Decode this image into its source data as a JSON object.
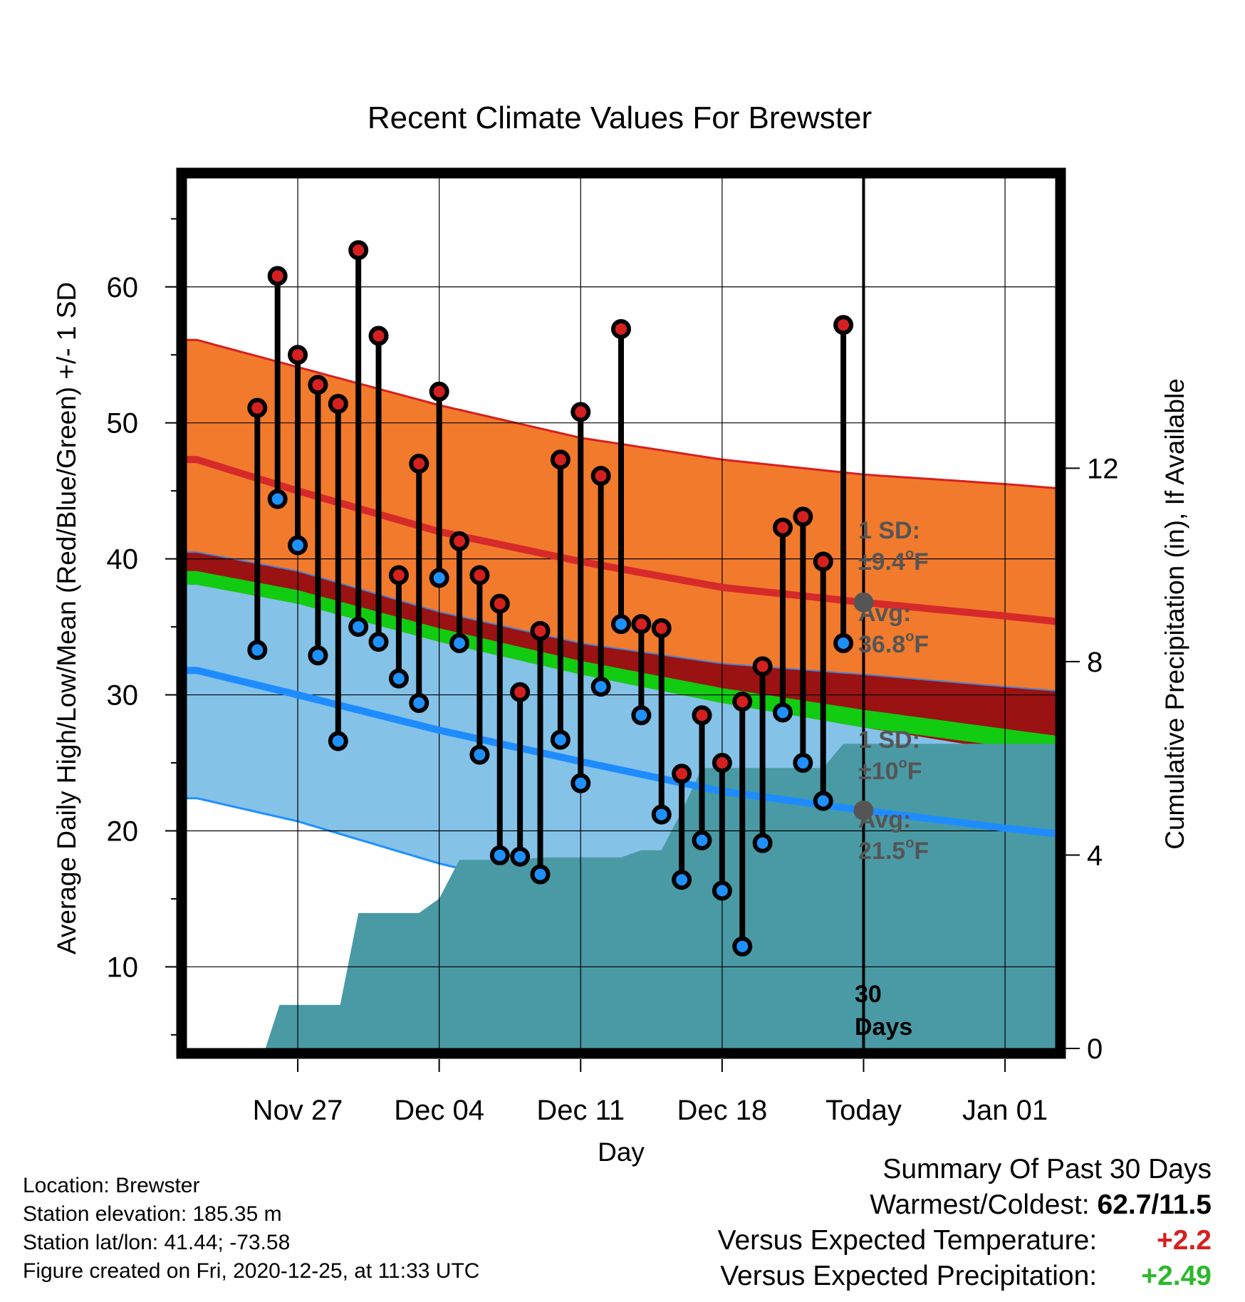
{
  "chart_data": {
    "type": "line",
    "title": "Recent Climate Values For Brewster",
    "xlabel": "Day",
    "ylabel_left": "Average Daily High/Low/Mean (Red/Blue/Green) +/- 1 SD",
    "ylabel_right": "Cumulative Precipitation (in), If Available",
    "y_left_range": [
      4,
      68
    ],
    "y_right_range": [
      0,
      18
    ],
    "x_range_days": [
      -33.5,
      9.5
    ],
    "y_left_ticks": [
      10,
      20,
      30,
      40,
      50,
      60
    ],
    "y_right_ticks": [
      0,
      4,
      8,
      12
    ],
    "x_ticks": [
      {
        "day": -28,
        "label": "Nov 27"
      },
      {
        "day": -21,
        "label": "Dec 04"
      },
      {
        "day": -14,
        "label": "Dec 11"
      },
      {
        "day": -7,
        "label": "Dec 18"
      },
      {
        "day": 0,
        "label": "Today"
      },
      {
        "day": 7,
        "label": "Jan 01"
      }
    ],
    "grid": true,
    "normals": {
      "days": [
        -33,
        -28,
        -21,
        -14,
        -7,
        0,
        7,
        9.5
      ],
      "high_avg": [
        47.3,
        45.0,
        42.0,
        39.8,
        37.9,
        36.8,
        35.8,
        35.4
      ],
      "high_upper": [
        56.1,
        54.1,
        51.3,
        48.9,
        47.3,
        46.2,
        45.5,
        45.2
      ],
      "high_lower": [
        40.5,
        39.1,
        36.1,
        33.8,
        32.3,
        31.5,
        30.6,
        30.3
      ],
      "low_avg": [
        31.8,
        30.0,
        27.4,
        25.1,
        22.9,
        21.5,
        20.2,
        19.8
      ],
      "low_upper": [
        38.1,
        36.7,
        33.9,
        31.5,
        29.4,
        27.6,
        25.9,
        25.4
      ],
      "low_lower": [
        22.4,
        20.7,
        17.6,
        15.1,
        13.0,
        11.5,
        10.1,
        9.6
      ],
      "mean_upper": [
        39.1,
        37.7,
        34.9,
        32.5,
        30.5,
        28.9,
        27.5,
        27.0
      ],
      "mean_lower": [
        38.1,
        36.7,
        33.9,
        31.5,
        29.4,
        27.6,
        26.2,
        25.9
      ]
    },
    "series": [
      {
        "name": "High",
        "color": "#d62020",
        "days": [
          -30,
          -29,
          -28,
          -27,
          -26,
          -25,
          -24,
          -23,
          -22,
          -21,
          -20,
          -19,
          -18,
          -17,
          -16,
          -15,
          -14,
          -13,
          -12,
          -11,
          -10,
          -9,
          -8,
          -7,
          -6,
          -5,
          -4,
          -3,
          -2,
          -1
        ],
        "values": [
          51.1,
          60.8,
          55.0,
          52.8,
          51.4,
          62.7,
          56.4,
          38.8,
          47.0,
          52.3,
          41.3,
          38.8,
          36.7,
          30.2,
          34.7,
          47.3,
          50.8,
          46.1,
          56.9,
          35.2,
          34.9,
          24.2,
          28.5,
          25.0,
          29.5,
          32.1,
          42.3,
          43.1,
          39.8,
          57.2
        ]
      },
      {
        "name": "Low",
        "color": "#1e90ff",
        "days": [
          -30,
          -29,
          -28,
          -27,
          -26,
          -25,
          -24,
          -23,
          -22,
          -21,
          -20,
          -19,
          -18,
          -17,
          -16,
          -15,
          -14,
          -13,
          -12,
          -11,
          -10,
          -9,
          -8,
          -7,
          -6,
          -5,
          -4,
          -3,
          -2,
          -1
        ],
        "values": [
          33.3,
          44.4,
          41.0,
          32.9,
          26.6,
          35.0,
          33.9,
          31.2,
          29.4,
          38.6,
          33.8,
          25.6,
          18.2,
          18.1,
          16.8,
          26.7,
          23.5,
          30.6,
          35.2,
          28.5,
          21.2,
          16.4,
          19.3,
          15.6,
          11.5,
          19.1,
          28.7,
          25.0,
          22.2,
          33.8
        ]
      }
    ],
    "precipitation": {
      "color": "#4a9aa5",
      "days": [
        -29.6,
        -28.9,
        -27.9,
        -26.9,
        -25.9,
        -25.0,
        -24.0,
        -23.0,
        -22.0,
        -21.0,
        -20.0,
        -19.0,
        -18.0,
        -17.0,
        -16.0,
        -15.0,
        -14.0,
        -13.0,
        -12.0,
        -11.0,
        -10.0,
        -9.0,
        -8.0,
        -7.0,
        -6.0,
        -5.0,
        -4.0,
        -3.0,
        -2.0,
        -1.0,
        0.0,
        9.5
      ],
      "values": [
        0.0,
        0.9,
        0.9,
        0.9,
        0.9,
        2.8,
        2.8,
        2.8,
        2.8,
        3.1,
        3.9,
        3.9,
        3.9,
        3.9,
        3.95,
        3.95,
        3.95,
        3.95,
        3.95,
        4.1,
        4.1,
        4.9,
        5.8,
        5.8,
        5.8,
        5.8,
        5.8,
        5.8,
        5.8,
        6.3,
        6.3,
        6.3
      ]
    },
    "today_markers": [
      {
        "series": "High",
        "day": 0,
        "value": 36.8
      },
      {
        "series": "Low",
        "day": 0,
        "value": 21.5
      }
    ],
    "annotations": {
      "high_sd_label": "1 SD:",
      "high_sd_value": "±9.4",
      "high_avg_label": "Avg:",
      "high_avg_value": "36.8",
      "low_sd_label": "1 SD:",
      "low_sd_value": "±10",
      "low_avg_label": "Avg:",
      "low_avg_value": "21.5",
      "degree_symbol": "o",
      "degree_unit": "F",
      "period_number": "30",
      "period_unit": "Days"
    }
  },
  "footer": {
    "location": "Location: Brewster",
    "elevation": "Station elevation: 185.35 m",
    "latlon": "Station lat/lon: 41.44; -73.58",
    "created": "Figure created on Fri, 2020-12-25, at 11:33 UTC"
  },
  "summary": {
    "heading": "Summary Of Past 30 Days",
    "warmest_label": "Warmest/Coldest:",
    "warmest_value": "62.7/11.5",
    "temp_label": "Versus Expected Temperature:",
    "temp_value": "+2.2",
    "temp_color": "#d62020",
    "precip_label": "Versus Expected Precipitation:",
    "precip_value": "+2.49",
    "precip_color": "#2db82d"
  }
}
